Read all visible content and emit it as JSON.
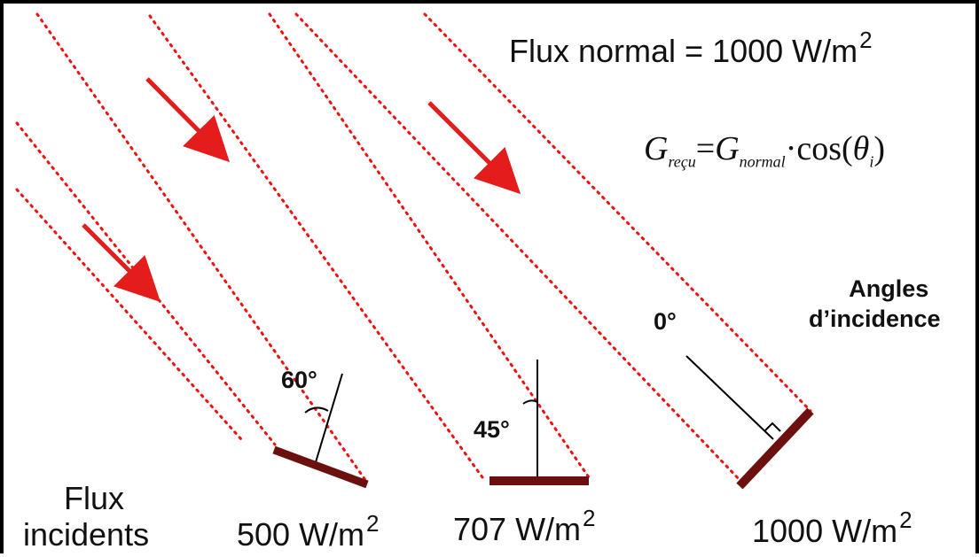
{
  "title": {
    "label": "Flux normal =",
    "value": "1000 W/m",
    "exponent": "2"
  },
  "formula": {
    "g": "G",
    "sub_recu": "reçu",
    "equals": "=",
    "sub_normal": "normal",
    "dot": "·",
    "cos": "cos",
    "open": "(",
    "theta": "θ",
    "sub_i": "i",
    "close": ")"
  },
  "angles_title": {
    "line1": "Angles",
    "line2": "d’incidence"
  },
  "flux_incidents": {
    "line1": "Flux",
    "line2": "incidents"
  },
  "panels": [
    {
      "angle": "60°",
      "flux_value": "500 W/m",
      "flux_exponent": "2"
    },
    {
      "angle": "45°",
      "flux_value": "707 W/m",
      "flux_exponent": "2"
    },
    {
      "angle": "0°",
      "flux_value": "1000 W/m",
      "flux_exponent": "2"
    }
  ],
  "colors": {
    "ray": "#ee1111",
    "arrow": "#e41c1c",
    "panel": "#6b0f0f",
    "normal": "#000000"
  }
}
